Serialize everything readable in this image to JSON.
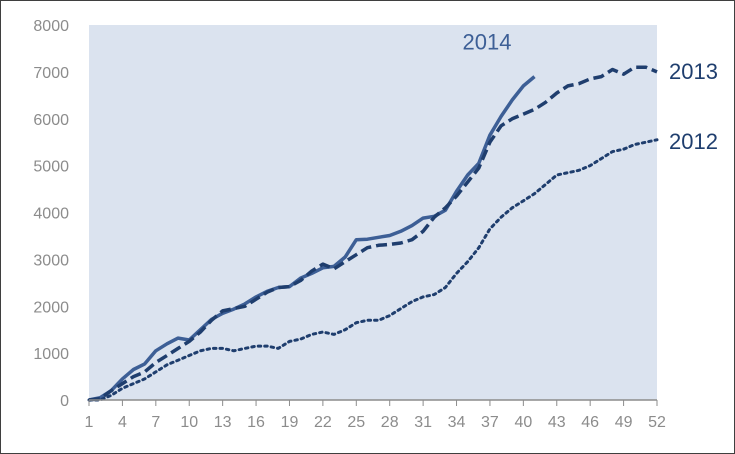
{
  "chart_data": {
    "type": "line",
    "title": "",
    "xlabel": "",
    "ylabel": "",
    "xlim": [
      1,
      52
    ],
    "ylim": [
      0,
      8000
    ],
    "grid": false,
    "legend": "direct labels at line ends",
    "x_ticks": [
      1,
      4,
      7,
      10,
      13,
      16,
      19,
      22,
      25,
      28,
      31,
      34,
      37,
      40,
      43,
      46,
      49,
      52
    ],
    "y_ticks": [
      0,
      1000,
      2000,
      3000,
      4000,
      5000,
      6000,
      7000,
      8000
    ],
    "series": [
      {
        "name": "2014",
        "style": "solid",
        "color": "#3d5f96",
        "x": [
          1,
          2,
          3,
          4,
          5,
          6,
          7,
          8,
          9,
          10,
          11,
          12,
          13,
          14,
          15,
          16,
          17,
          18,
          19,
          20,
          21,
          22,
          23,
          24,
          25,
          26,
          27,
          28,
          29,
          30,
          31,
          32,
          33,
          34,
          35,
          36,
          37,
          38,
          39,
          40,
          41
        ],
        "values": [
          0,
          50,
          200,
          450,
          650,
          770,
          1050,
          1200,
          1320,
          1280,
          1500,
          1720,
          1850,
          1940,
          2050,
          2200,
          2320,
          2400,
          2420,
          2600,
          2700,
          2820,
          2850,
          3050,
          3420,
          3430,
          3470,
          3510,
          3600,
          3720,
          3880,
          3920,
          4050,
          4450,
          4800,
          5050,
          5650,
          6050,
          6400,
          6700,
          6900
        ]
      },
      {
        "name": "2013",
        "style": "dashed",
        "color": "#1f3e6e",
        "x": [
          1,
          2,
          3,
          4,
          5,
          6,
          7,
          8,
          9,
          10,
          11,
          12,
          13,
          14,
          15,
          16,
          17,
          18,
          19,
          20,
          21,
          22,
          23,
          24,
          25,
          26,
          27,
          28,
          29,
          30,
          31,
          32,
          33,
          34,
          35,
          36,
          37,
          38,
          39,
          40,
          41,
          42,
          43,
          44,
          45,
          46,
          47,
          48,
          49,
          50,
          51,
          52
        ],
        "values": [
          0,
          30,
          200,
          350,
          500,
          600,
          800,
          950,
          1100,
          1250,
          1450,
          1700,
          1900,
          1950,
          2000,
          2150,
          2300,
          2400,
          2420,
          2550,
          2750,
          2900,
          2800,
          2950,
          3100,
          3250,
          3300,
          3320,
          3350,
          3420,
          3600,
          3900,
          4100,
          4350,
          4650,
          4950,
          5500,
          5850,
          6000,
          6100,
          6200,
          6350,
          6550,
          6700,
          6750,
          6850,
          6900,
          7050,
          6950,
          7100,
          7100,
          7000
        ]
      },
      {
        "name": "2012",
        "style": "dotted",
        "color": "#1f3e6e",
        "x": [
          1,
          2,
          3,
          4,
          5,
          6,
          7,
          8,
          9,
          10,
          11,
          12,
          13,
          14,
          15,
          16,
          17,
          18,
          19,
          20,
          21,
          22,
          23,
          24,
          25,
          26,
          27,
          28,
          29,
          30,
          31,
          32,
          33,
          34,
          35,
          36,
          37,
          38,
          39,
          40,
          41,
          42,
          43,
          44,
          45,
          46,
          47,
          48,
          49,
          50,
          51,
          52
        ],
        "values": [
          0,
          0,
          100,
          250,
          350,
          450,
          600,
          750,
          850,
          950,
          1050,
          1100,
          1100,
          1050,
          1100,
          1150,
          1150,
          1100,
          1250,
          1300,
          1400,
          1450,
          1400,
          1500,
          1650,
          1700,
          1700,
          1800,
          1950,
          2100,
          2200,
          2250,
          2400,
          2700,
          2950,
          3250,
          3650,
          3900,
          4100,
          4250,
          4400,
          4600,
          4800,
          4850,
          4900,
          5000,
          5150,
          5300,
          5350,
          5450,
          5500,
          5550
        ]
      }
    ]
  }
}
